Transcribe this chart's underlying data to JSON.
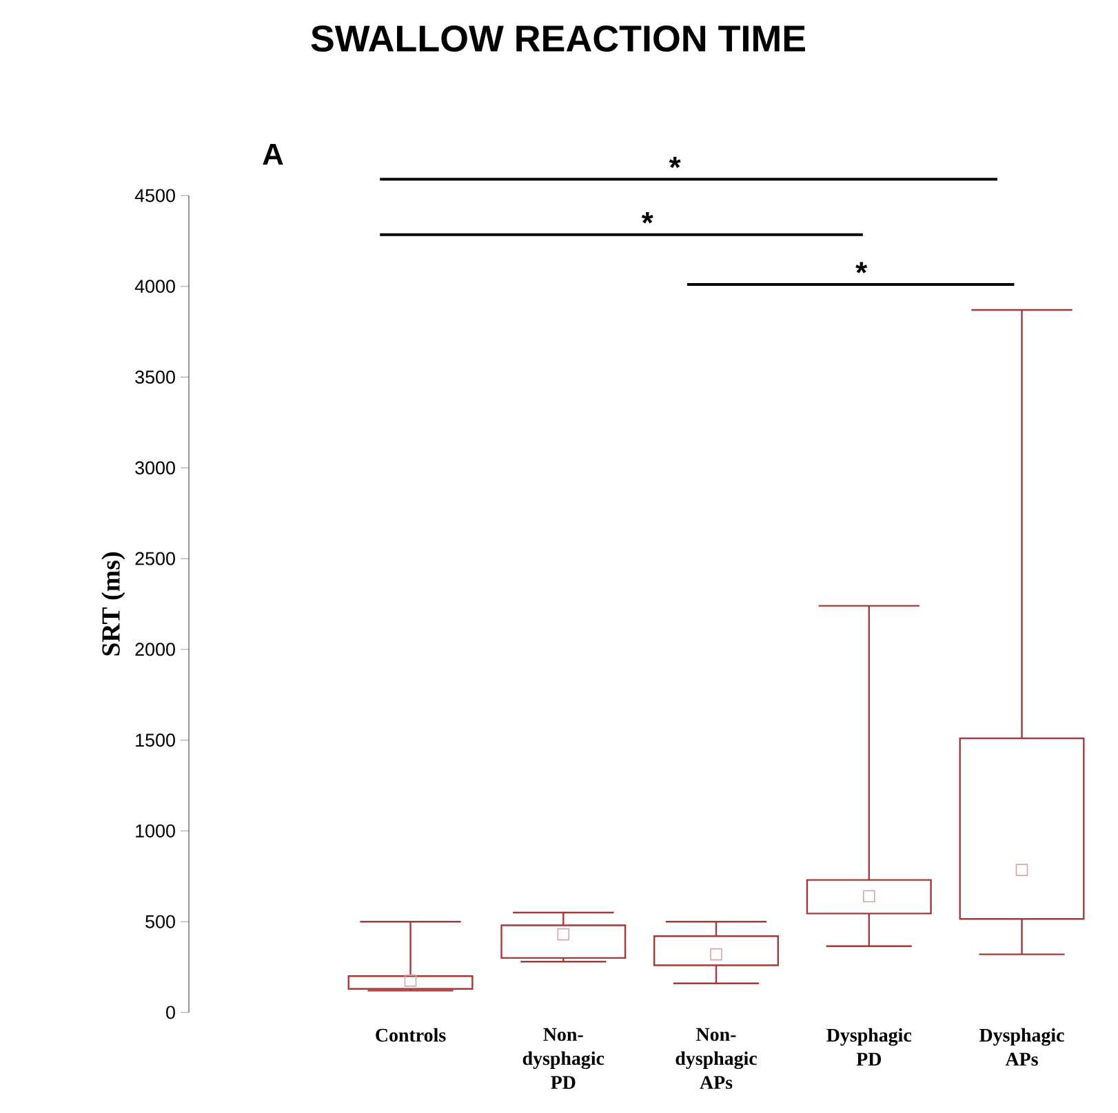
{
  "chart_data": {
    "type": "box",
    "title": "SWALLOW REACTION TIME",
    "ylabel": "SRT (ms)",
    "categories": [
      "Controls",
      "Non-dysphagic PD",
      "Non-dysphagic APs",
      "Dysphagic PD",
      "Dysphagic APs"
    ],
    "series": [
      {
        "color": "#a33a3a",
        "boxes": [
          {
            "low": 120,
            "q1": 130,
            "q3": 200,
            "high": 500,
            "mean": 175
          },
          {
            "low": 280,
            "q1": 300,
            "q3": 480,
            "high": 550,
            "mean": 430
          },
          {
            "low": 160,
            "q1": 260,
            "q3": 420,
            "high": 500,
            "mean": 320
          },
          {
            "low": 365,
            "q1": 545,
            "q3": 730,
            "high": 2240,
            "mean": 640
          },
          {
            "low": 320,
            "q1": 515,
            "q3": 1510,
            "high": 3870,
            "mean": 785
          }
        ]
      }
    ],
    "ylim": [
      0,
      4500
    ],
    "yticks": [
      0,
      500,
      1000,
      1500,
      2000,
      2500,
      3000,
      3500,
      4000,
      4500
    ],
    "marker": "square",
    "grid": false,
    "annotations": [
      "A",
      "*",
      "*",
      "*"
    ]
  }
}
